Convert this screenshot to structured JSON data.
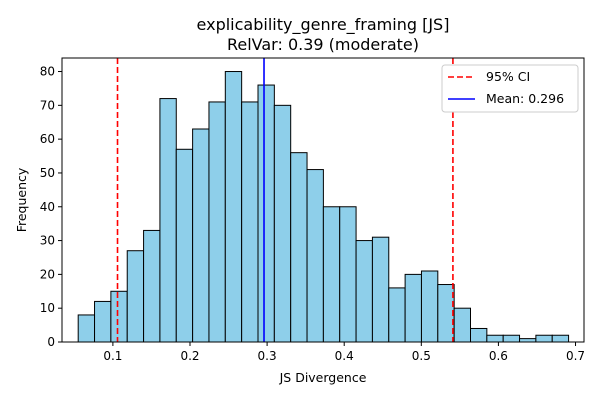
{
  "chart_data": {
    "type": "bar",
    "title": "explicability_genre_framing [JS]",
    "subtitle": "RelVar: 0.39 (moderate)",
    "xlabel": "JS Divergence",
    "ylabel": "Frequency",
    "xlim": [
      0.034,
      0.711
    ],
    "ylim": [
      0,
      84
    ],
    "x_ticks": [
      "0.1",
      "0.2",
      "0.3",
      "0.4",
      "0.5",
      "0.6",
      "0.7"
    ],
    "x_tick_values": [
      0.1,
      0.2,
      0.3,
      0.4,
      0.5,
      0.6,
      0.7
    ],
    "y_ticks": [
      "0",
      "10",
      "20",
      "30",
      "40",
      "50",
      "60",
      "70",
      "80"
    ],
    "y_tick_values": [
      0,
      10,
      20,
      30,
      40,
      50,
      60,
      70,
      80
    ],
    "bin_start": 0.055,
    "bin_width": 0.0212,
    "values": [
      8,
      12,
      15,
      27,
      33,
      72,
      57,
      63,
      71,
      80,
      71,
      76,
      70,
      56,
      51,
      40,
      40,
      30,
      31,
      16,
      20,
      21,
      17,
      10,
      4,
      2,
      2,
      1,
      2,
      2
    ],
    "bar_color": "#8ecfea",
    "edge_color": "#000000",
    "ci_lines": [
      0.106,
      0.541
    ],
    "ci_color": "#ff0000",
    "mean_value": 0.296,
    "mean_color": "#0000ff",
    "legend": {
      "position": "top-right",
      "entries": [
        {
          "label": "95% CI",
          "style": "dashed",
          "color": "#ff0000"
        },
        {
          "label": "Mean: 0.296",
          "style": "solid",
          "color": "#0000ff"
        }
      ]
    },
    "grid": false
  }
}
